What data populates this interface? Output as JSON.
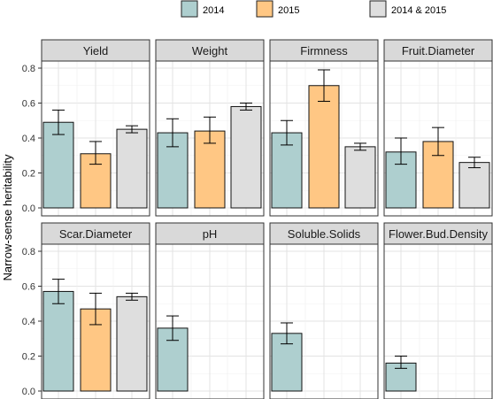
{
  "chart_data": {
    "type": "bar",
    "ylabel": "Narrow-sense heritability",
    "ylim": [
      0,
      0.8
    ],
    "yticks": [
      "0.0",
      "0.2",
      "0.4",
      "0.6",
      "0.8"
    ],
    "grid": true,
    "legend_position": "top",
    "legend": [
      {
        "name": "2014",
        "color": "#aecfcf"
      },
      {
        "name": "2015",
        "color": "#ffc784"
      },
      {
        "name": "2014 & 2015",
        "color": "#dedede"
      }
    ],
    "panels": [
      {
        "title": "Yield",
        "bars": [
          {
            "series": "2014",
            "value": 0.49,
            "lo": 0.42,
            "hi": 0.56
          },
          {
            "series": "2015",
            "value": 0.31,
            "lo": 0.25,
            "hi": 0.38
          },
          {
            "series": "2014 & 2015",
            "value": 0.45,
            "lo": 0.43,
            "hi": 0.47
          }
        ]
      },
      {
        "title": "Weight",
        "bars": [
          {
            "series": "2014",
            "value": 0.43,
            "lo": 0.35,
            "hi": 0.51
          },
          {
            "series": "2015",
            "value": 0.44,
            "lo": 0.37,
            "hi": 0.52
          },
          {
            "series": "2014 & 2015",
            "value": 0.58,
            "lo": 0.56,
            "hi": 0.6
          }
        ]
      },
      {
        "title": "Firmness",
        "bars": [
          {
            "series": "2014",
            "value": 0.43,
            "lo": 0.36,
            "hi": 0.5
          },
          {
            "series": "2015",
            "value": 0.7,
            "lo": 0.61,
            "hi": 0.79
          },
          {
            "series": "2014 & 2015",
            "value": 0.35,
            "lo": 0.33,
            "hi": 0.37
          }
        ]
      },
      {
        "title": "Fruit.Diameter",
        "bars": [
          {
            "series": "2014",
            "value": 0.32,
            "lo": 0.25,
            "hi": 0.4
          },
          {
            "series": "2015",
            "value": 0.38,
            "lo": 0.3,
            "hi": 0.46
          },
          {
            "series": "2014 & 2015",
            "value": 0.26,
            "lo": 0.23,
            "hi": 0.29
          }
        ]
      },
      {
        "title": "Scar.Diameter",
        "bars": [
          {
            "series": "2014",
            "value": 0.57,
            "lo": 0.5,
            "hi": 0.64
          },
          {
            "series": "2015",
            "value": 0.47,
            "lo": 0.38,
            "hi": 0.56
          },
          {
            "series": "2014 & 2015",
            "value": 0.54,
            "lo": 0.52,
            "hi": 0.56
          }
        ]
      },
      {
        "title": "pH",
        "bars": [
          {
            "series": "2014",
            "value": 0.36,
            "lo": 0.29,
            "hi": 0.43
          }
        ]
      },
      {
        "title": "Soluble.Solids",
        "bars": [
          {
            "series": "2014",
            "value": 0.33,
            "lo": 0.27,
            "hi": 0.39
          }
        ]
      },
      {
        "title": "Flower.Bud.Density",
        "bars": [
          {
            "series": "2014",
            "value": 0.16,
            "lo": 0.13,
            "hi": 0.2
          }
        ]
      }
    ]
  }
}
